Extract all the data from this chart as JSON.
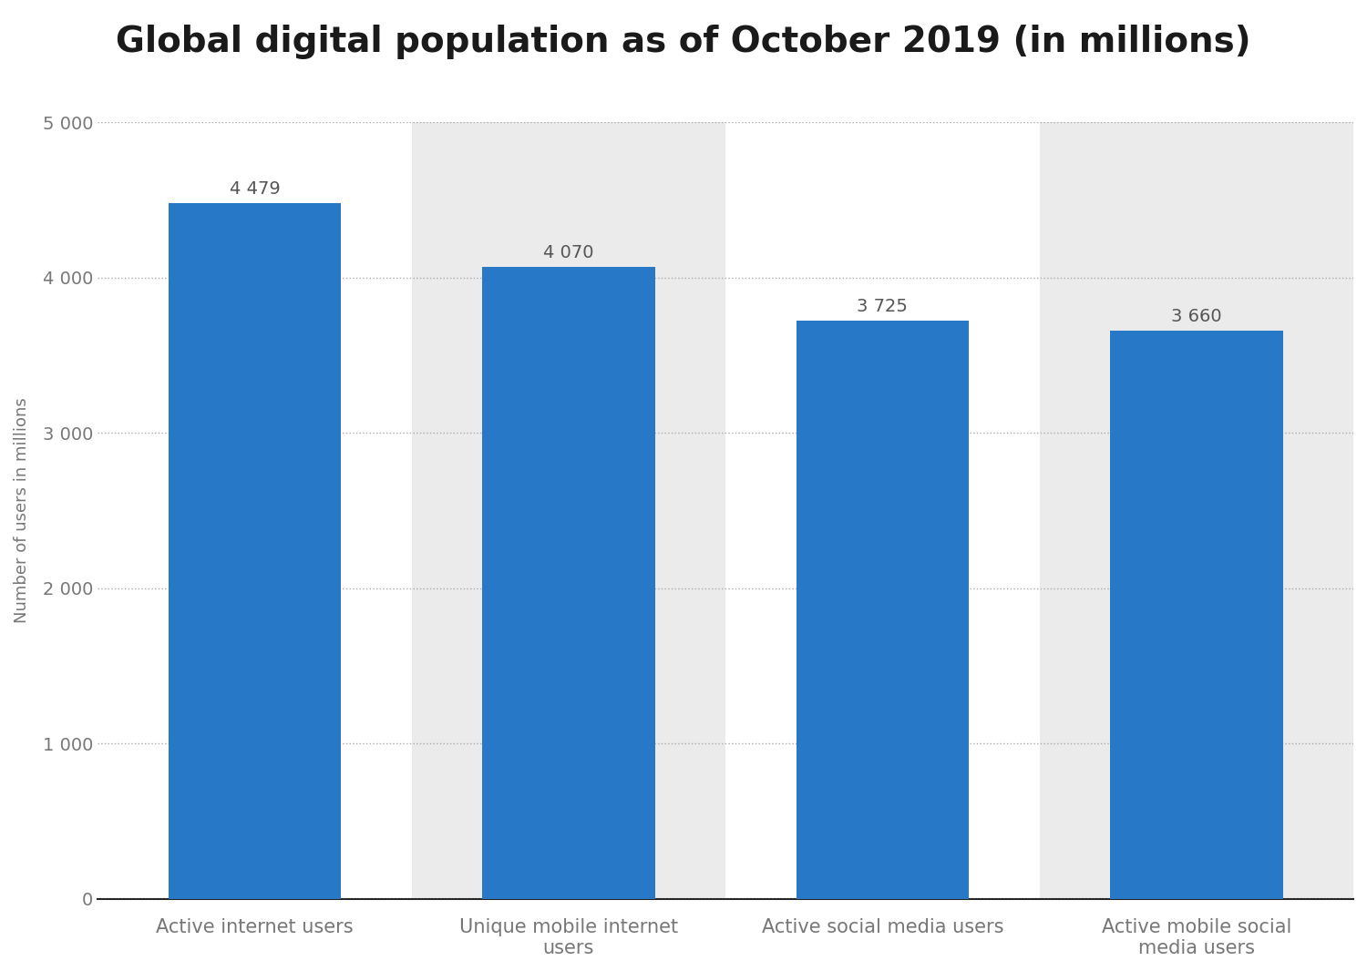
{
  "title": "Global digital population as of October 2019 (in millions)",
  "categories": [
    "Active internet users",
    "Unique mobile internet\nusers",
    "Active social media users",
    "Active mobile social\nmedia users"
  ],
  "values": [
    4479,
    4070,
    3725,
    3660
  ],
  "bar_labels": [
    "4 479",
    "4 070",
    "3 725",
    "3 660"
  ],
  "bar_color": "#2878c8",
  "background_color": "#ffffff",
  "col_bg_white": "#ffffff",
  "col_bg_gray": "#ebebeb",
  "ylabel": "Number of users in millions",
  "ylim": [
    0,
    5000
  ],
  "yticks": [
    0,
    1000,
    2000,
    3000,
    4000,
    5000
  ],
  "ytick_labels": [
    "0",
    "1 000",
    "2 000",
    "3 000",
    "4 000",
    "5 000"
  ],
  "title_fontsize": 28,
  "label_fontsize": 15,
  "ylabel_fontsize": 13,
  "tick_label_fontsize": 14,
  "bar_label_fontsize": 14,
  "grid_color": "#aaaaaa",
  "text_color": "#777777",
  "bar_label_color": "#555555"
}
